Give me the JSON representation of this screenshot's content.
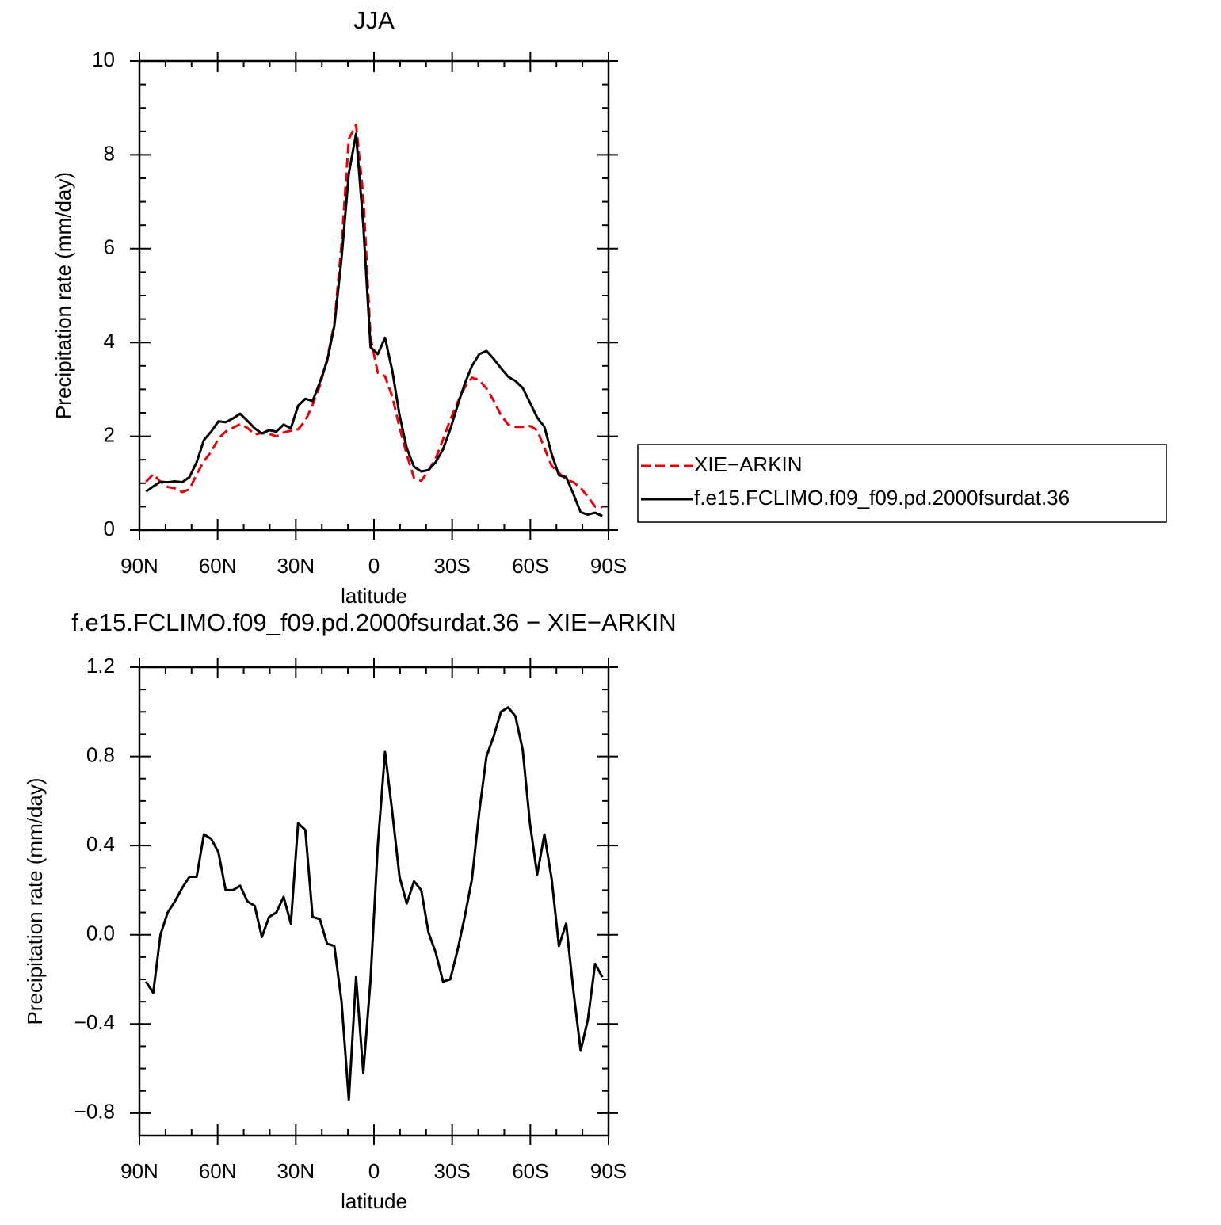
{
  "chart_data": [
    {
      "type": "line",
      "title": "JJA",
      "xlabel": "latitude",
      "ylabel": "Precipitation rate (mm/day)",
      "x": [
        87.5,
        84.72,
        81.94,
        79.16,
        76.38,
        73.6,
        70.82,
        68.04,
        65.26,
        62.48,
        59.7,
        56.92,
        54.14,
        51.36,
        48.58,
        45.8,
        43.02,
        40.24,
        37.46,
        34.68,
        31.9,
        29.12,
        26.34,
        23.56,
        20.78,
        18.0,
        15.22,
        12.44,
        9.66,
        6.88,
        4.1,
        1.32,
        -1.46,
        -4.24,
        -7.02,
        -9.8,
        -12.58,
        -15.36,
        -18.14,
        -20.92,
        -23.7,
        -26.48,
        -29.26,
        -32.04,
        -34.82,
        -37.6,
        -40.38,
        -43.16,
        -45.94,
        -48.72,
        -51.5,
        -54.28,
        -57.06,
        -59.84,
        -62.62,
        -65.4,
        -68.18,
        -70.96,
        -73.74,
        -76.52,
        -79.3,
        -82.08,
        -84.86,
        -87.64
      ],
      "series": [
        {
          "name": "XIE−ARKIN",
          "color": "#e8000b",
          "dashed": true,
          "values": [
            1.03,
            1.19,
            1.03,
            0.92,
            0.89,
            0.81,
            0.87,
            1.19,
            1.47,
            1.67,
            1.95,
            2.1,
            2.18,
            2.26,
            2.18,
            2.04,
            2.07,
            2.05,
            2.0,
            2.08,
            2.12,
            2.15,
            2.33,
            2.67,
            3.08,
            3.64,
            4.4,
            6.1,
            8.34,
            8.64,
            7.12,
            4.1,
            3.35,
            3.28,
            2.85,
            2.19,
            1.61,
            1.11,
            1.05,
            1.27,
            1.53,
            1.93,
            2.35,
            2.72,
            3.04,
            3.25,
            3.2,
            3.02,
            2.76,
            2.45,
            2.25,
            2.2,
            2.2,
            2.22,
            2.13,
            1.75,
            1.37,
            1.22,
            1.08,
            1.02,
            0.9,
            0.71,
            0.5,
            0.49
          ]
        },
        {
          "name": "f.e15.FCLIMO.f09_f09.pd.2000fsurdat.36",
          "color": "#000000",
          "dashed": false,
          "values": [
            0.82,
            0.93,
            1.03,
            1.02,
            1.04,
            1.02,
            1.13,
            1.45,
            1.92,
            2.1,
            2.32,
            2.3,
            2.38,
            2.48,
            2.33,
            2.17,
            2.06,
            2.13,
            2.1,
            2.25,
            2.17,
            2.65,
            2.8,
            2.75,
            3.15,
            3.6,
            4.35,
            5.8,
            7.6,
            8.45,
            6.5,
            3.9,
            3.75,
            4.1,
            3.4,
            2.45,
            1.75,
            1.35,
            1.25,
            1.28,
            1.45,
            1.72,
            2.15,
            2.65,
            3.12,
            3.5,
            3.75,
            3.82,
            3.65,
            3.45,
            3.27,
            3.18,
            3.03,
            2.72,
            2.4,
            2.2,
            1.62,
            1.17,
            1.13,
            0.77,
            0.38,
            0.33,
            0.37,
            0.3
          ]
        }
      ],
      "xlim": [
        90,
        -90
      ],
      "xticks": [
        {
          "value": 90,
          "label": "90N"
        },
        {
          "value": 60,
          "label": "60N"
        },
        {
          "value": 30,
          "label": "30N"
        },
        0,
        {
          "value": -30,
          "label": "30S"
        },
        {
          "value": -60,
          "label": "60S"
        },
        {
          "value": -90,
          "label": "90S"
        }
      ],
      "ylim": [
        0,
        10
      ],
      "yticks": [
        0,
        2,
        4,
        6,
        8,
        10
      ],
      "legend": "outside-right"
    },
    {
      "type": "line",
      "title": "f.e15.FCLIMO.f09_f09.pd.2000fsurdat.36 − XIE−ARKIN",
      "xlabel": "latitude",
      "ylabel": "Precipitation rate (mm/day)",
      "x": [
        87.5,
        84.72,
        81.94,
        79.16,
        76.38,
        73.6,
        70.82,
        68.04,
        65.26,
        62.48,
        59.7,
        56.92,
        54.14,
        51.36,
        48.58,
        45.8,
        43.02,
        40.24,
        37.46,
        34.68,
        31.9,
        29.12,
        26.34,
        23.56,
        20.78,
        18.0,
        15.22,
        12.44,
        9.66,
        6.88,
        4.1,
        1.32,
        -1.46,
        -4.24,
        -7.02,
        -9.8,
        -12.58,
        -15.36,
        -18.14,
        -20.92,
        -23.7,
        -26.48,
        -29.26,
        -32.04,
        -34.82,
        -37.6,
        -40.38,
        -43.16,
        -45.94,
        -48.72,
        -51.5,
        -54.28,
        -57.06,
        -59.84,
        -62.62,
        -65.4,
        -68.18,
        -70.96,
        -73.74,
        -76.52,
        -79.3,
        -82.08,
        -84.86,
        -87.64
      ],
      "color": "#000000",
      "values": [
        -0.21,
        -0.26,
        0.0,
        0.1,
        0.15,
        0.21,
        0.26,
        0.26,
        0.45,
        0.43,
        0.37,
        0.2,
        0.2,
        0.22,
        0.15,
        0.13,
        -0.01,
        0.08,
        0.1,
        0.17,
        0.05,
        0.5,
        0.47,
        0.08,
        0.07,
        -0.04,
        -0.05,
        -0.3,
        -0.74,
        -0.19,
        -0.62,
        -0.2,
        0.4,
        0.82,
        0.55,
        0.26,
        0.14,
        0.24,
        0.2,
        0.01,
        -0.08,
        -0.21,
        -0.2,
        -0.07,
        0.08,
        0.25,
        0.55,
        0.8,
        0.89,
        1.0,
        1.02,
        0.98,
        0.83,
        0.5,
        0.27,
        0.45,
        0.25,
        -0.05,
        0.05,
        -0.25,
        -0.52,
        -0.38,
        -0.13,
        -0.19
      ],
      "xlim": [
        90,
        -90
      ],
      "xticks": [
        {
          "value": 90,
          "label": "90N"
        },
        {
          "value": 60,
          "label": "60N"
        },
        {
          "value": 30,
          "label": "30N"
        },
        0,
        {
          "value": -30,
          "label": "30S"
        },
        {
          "value": -60,
          "label": "60S"
        },
        {
          "value": -90,
          "label": "90S"
        }
      ],
      "ylim": [
        -0.9,
        1.2
      ],
      "yticks": [
        {
          "value": -0.8,
          "label": "−0.8"
        },
        {
          "value": -0.4,
          "label": "−0.4"
        },
        {
          "value": 0,
          "label": "0.0"
        },
        {
          "value": 0.4,
          "label": "0.4"
        },
        {
          "value": 0.8,
          "label": "0.8"
        },
        {
          "value": 1.2,
          "label": "1.2"
        }
      ]
    }
  ]
}
